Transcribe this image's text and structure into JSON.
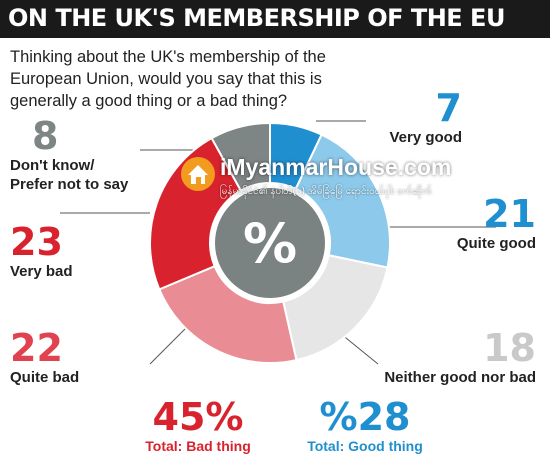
{
  "banner": {
    "title": "ON THE UK'S MEMBERSHIP OF THE EU"
  },
  "question": {
    "lines": [
      "Thinking about the UK's membership of the",
      "European Union, would you say that this is",
      "generally a good thing or a bad thing?"
    ]
  },
  "colors": {
    "very_good": "#1f8fd0",
    "quite_good": "#8cc9ea",
    "neither": "#e6e6e6",
    "quite_bad": "#e98c94",
    "very_bad": "#d8222d",
    "dont_know": "#7e8585",
    "center": "#7b8282",
    "banner": "#1a1a1a"
  },
  "chart_data": {
    "type": "pie",
    "center_label": "%",
    "slices": [
      {
        "key": "very_good",
        "label": "Very good",
        "value": 7
      },
      {
        "key": "quite_good",
        "label": "Quite good",
        "value": 21
      },
      {
        "key": "neither",
        "label": "Neither good nor bad",
        "value": 18
      },
      {
        "key": "quite_bad",
        "label": "Quite bad",
        "value": 22
      },
      {
        "key": "very_bad",
        "label": "Very bad",
        "value": 23
      },
      {
        "key": "dont_know",
        "label": "Don't know/ Prefer not to say",
        "value": 8
      }
    ]
  },
  "labels": {
    "very_good": {
      "num": "7",
      "cap": "Very good"
    },
    "quite_good": {
      "num": "21",
      "cap": "Quite good"
    },
    "neither": {
      "num": "18",
      "cap": "Neither good nor bad"
    },
    "quite_bad": {
      "num": "22",
      "cap": "Quite bad"
    },
    "very_bad": {
      "num": "23",
      "cap": "Very bad"
    },
    "dont_know": {
      "num": "8",
      "cap1": "Don't know/",
      "cap2": "Prefer not to say"
    }
  },
  "totals": {
    "bad": {
      "value": "45%",
      "label": "Total: Bad thing"
    },
    "good": {
      "value": "%28",
      "label": "Total: Good thing"
    }
  },
  "watermark": {
    "main": "iMyanmarHouse.com",
    "sub": "မြန်မာနိုင်ငံ၏ နံပါတ်(၁) အိမ်ခြံမြေ ရောင်းဝယ်ငှါး ဝက်ဆိုက်"
  }
}
